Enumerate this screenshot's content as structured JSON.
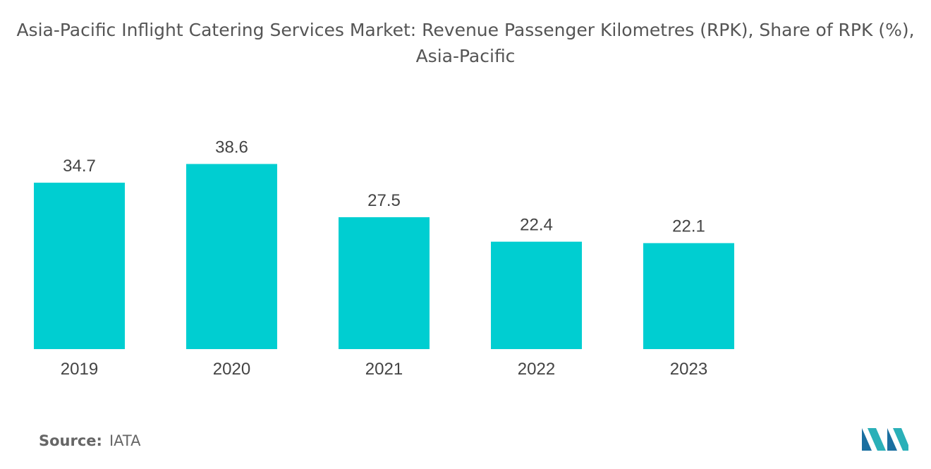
{
  "chart_data": {
    "type": "bar",
    "title": "Asia-Pacific Inflight Catering Services Market: Revenue Passenger Kilometres (RPK), Share of RPK (%), Asia-Pacific",
    "categories": [
      "2019",
      "2020",
      "2021",
      "2022",
      "2023"
    ],
    "values": [
      34.7,
      38.6,
      27.5,
      22.4,
      22.1
    ],
    "color": "#00ced1"
  },
  "source": {
    "label": "Source:",
    "text": "IATA"
  }
}
